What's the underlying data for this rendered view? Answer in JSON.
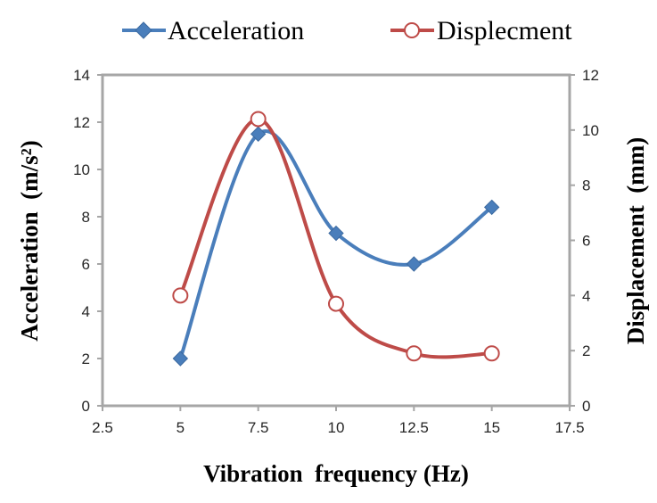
{
  "chart_data": {
    "type": "line",
    "xlabel": "Vibration  frequency (Hz)",
    "ylabel": "Acceleration  (m/s²)",
    "y2label": "Displacement  (mm)",
    "x_ticks": [
      "2.5",
      "5",
      "7.5",
      "10",
      "12.5",
      "15",
      "17.5"
    ],
    "y_ticks": [
      "0",
      "2",
      "4",
      "6",
      "8",
      "10",
      "12",
      "14"
    ],
    "y2_ticks": [
      "0",
      "2",
      "4",
      "6",
      "8",
      "10",
      "12"
    ],
    "xlim": [
      2.5,
      17.5
    ],
    "ylim": [
      0,
      14
    ],
    "y2lim": [
      0,
      12
    ],
    "grid": false,
    "legend_position": "top",
    "series": [
      {
        "name": "Acceleration",
        "axis": "left",
        "marker": "diamond",
        "color": "#4a7ebb",
        "smooth": true,
        "x": [
          5,
          7.5,
          10,
          12.5,
          15
        ],
        "y": [
          2.0,
          11.5,
          7.3,
          6.0,
          8.4
        ]
      },
      {
        "name": "Displecment",
        "axis": "right",
        "marker": "open-circle",
        "color": "#be4b48",
        "smooth": true,
        "x": [
          5,
          7.5,
          10,
          12.5,
          15
        ],
        "y": [
          4.0,
          10.4,
          3.7,
          1.9,
          1.9
        ]
      }
    ]
  }
}
